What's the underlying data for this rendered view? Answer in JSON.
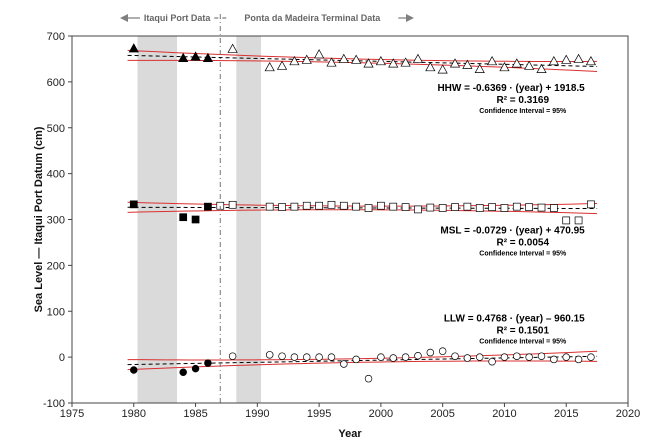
{
  "chart_data": {
    "type": "scatter",
    "xlabel": "Year",
    "ylabel": "Sea Level — Itaqui Port Datum (cm)",
    "xlim": [
      1975,
      2020
    ],
    "ylim": [
      -100,
      700
    ],
    "xticks": [
      1975,
      1980,
      1985,
      1990,
      1995,
      2000,
      2005,
      2010,
      2015,
      2020
    ],
    "yticks": [
      -100,
      0,
      100,
      200,
      300,
      400,
      500,
      600,
      700
    ],
    "grid": false,
    "period_labels": {
      "itaqui": "Itaqui Port Data",
      "ponta": "Ponta da Madeira Terminal Data"
    },
    "divider_year": 1987,
    "shaded_ranges": [
      [
        1980.3,
        1983.5
      ],
      [
        1988.3,
        1990.3
      ]
    ],
    "colors": {
      "fit": "#000000",
      "confidence": "#d93030",
      "shade": "#d3d3d3",
      "header": "#7f7f7f"
    },
    "series": [
      {
        "name": "HHW",
        "marker": "triangle",
        "itaqui": {
          "x": [
            1980,
            1984,
            1985,
            1986
          ],
          "y": [
            673,
            652,
            655,
            652
          ]
        },
        "ponta": {
          "x": [
            1988,
            1991,
            1992,
            1993,
            1994,
            1995,
            1996,
            1997,
            1998,
            1999,
            2000,
            2001,
            2002,
            2003,
            2004,
            2005,
            2006,
            2007,
            2008,
            2009,
            2010,
            2011,
            2012,
            2013,
            2014,
            2015,
            2016,
            2017
          ],
          "y": [
            672,
            632,
            635,
            645,
            648,
            660,
            642,
            650,
            648,
            640,
            645,
            640,
            642,
            650,
            632,
            627,
            640,
            637,
            628,
            645,
            632,
            640,
            635,
            628,
            645,
            648,
            650,
            645
          ]
        },
        "fit": {
          "slope": -0.6369,
          "intercept": 1918.5
        },
        "equation": "HHW = -0.6369 · (year) + 1918.5",
        "r2": "R² = 0.3169",
        "ci": "Confidence Interval = 95%"
      },
      {
        "name": "MSL",
        "marker": "square",
        "itaqui": {
          "x": [
            1980,
            1984,
            1985,
            1986
          ],
          "y": [
            333,
            305,
            300,
            328
          ]
        },
        "ponta": {
          "x": [
            1987,
            1988,
            1991,
            1992,
            1993,
            1994,
            1995,
            1996,
            1997,
            1998,
            1999,
            2000,
            2001,
            2002,
            2003,
            2004,
            2005,
            2006,
            2007,
            2008,
            2009,
            2010,
            2011,
            2012,
            2013,
            2014,
            2015,
            2016,
            2017
          ],
          "y": [
            330,
            332,
            328,
            327,
            328,
            330,
            330,
            332,
            330,
            328,
            325,
            330,
            328,
            327,
            322,
            326,
            325,
            327,
            328,
            325,
            327,
            325,
            328,
            327,
            326,
            325,
            298,
            298,
            333
          ]
        },
        "fit": {
          "slope": -0.0729,
          "intercept": 470.95
        },
        "equation": "MSL = -0.0729 · (year) + 470.95",
        "r2": "R² = 0.0054",
        "ci": "Confidence Interval = 95%"
      },
      {
        "name": "LLW",
        "marker": "circle",
        "itaqui": {
          "x": [
            1980,
            1984,
            1985,
            1986
          ],
          "y": [
            -28,
            -33,
            -25,
            -13
          ]
        },
        "ponta": {
          "x": [
            1988,
            1991,
            1992,
            1993,
            1994,
            1995,
            1996,
            1997,
            1998,
            1999,
            2000,
            2001,
            2002,
            2003,
            2004,
            2005,
            2006,
            2007,
            2008,
            2009,
            2010,
            2011,
            2012,
            2013,
            2014,
            2015,
            2016,
            2017
          ],
          "y": [
            2,
            5,
            2,
            0,
            0,
            0,
            0,
            -15,
            -5,
            -47,
            0,
            -2,
            0,
            3,
            10,
            13,
            2,
            -2,
            0,
            -10,
            0,
            2,
            0,
            2,
            -5,
            0,
            -5,
            0
          ]
        },
        "fit": {
          "slope": 0.4768,
          "intercept": -960.15
        },
        "equation": "LLW = 0.4768 · (year) – 960.15",
        "r2": "R² = 0.1501",
        "ci": "Confidence Interval = 95%"
      }
    ]
  }
}
